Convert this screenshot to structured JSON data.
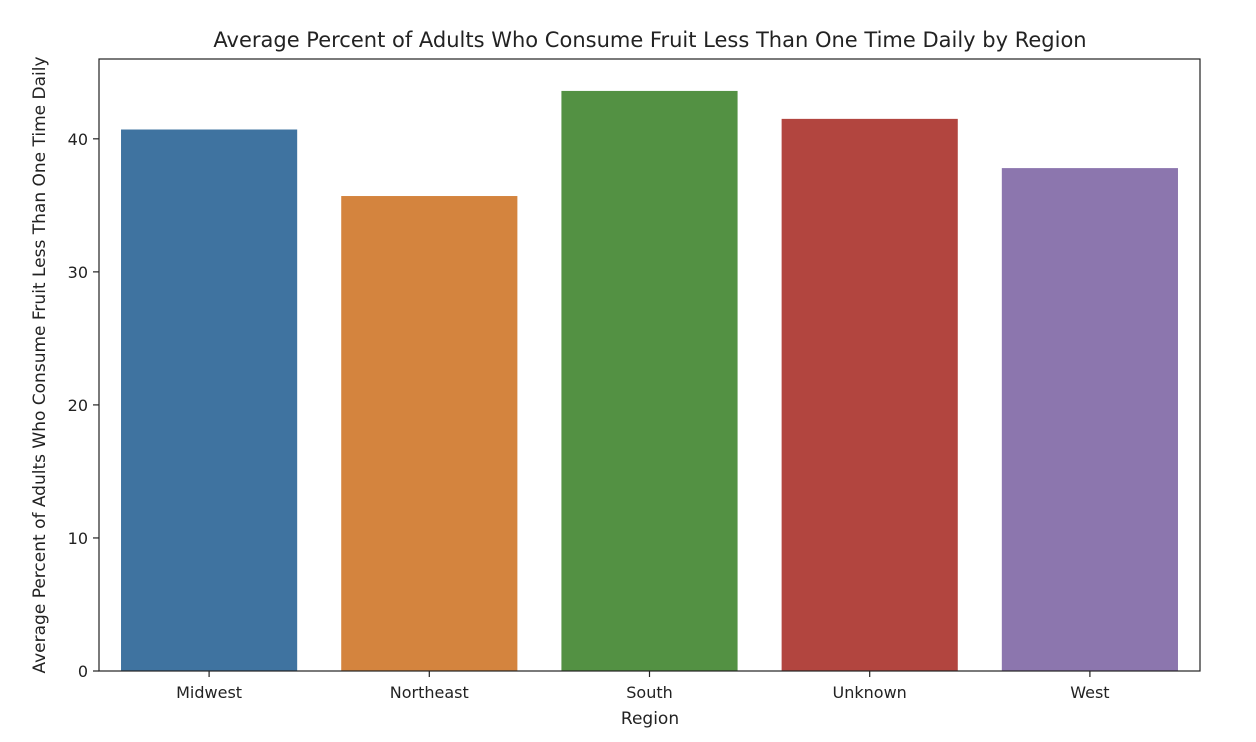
{
  "chart_data": {
    "type": "bar",
    "title": "Average Percent of Adults Who Consume Fruit Less Than One Time Daily by Region",
    "xlabel": "Region",
    "ylabel": "Average Percent of Adults Who Consume Fruit Less Than One Time Daily",
    "categories": [
      "Midwest",
      "Northeast",
      "South",
      "Unknown",
      "West"
    ],
    "values": [
      40.7,
      35.7,
      43.6,
      41.5,
      37.8
    ],
    "colors": [
      "#3f73a0",
      "#d4843e",
      "#539143",
      "#b2453f",
      "#8c76ae"
    ],
    "ylim": [
      0,
      46
    ],
    "yticks": [
      0,
      10,
      20,
      30,
      40
    ],
    "grid": false,
    "legend": "none"
  }
}
